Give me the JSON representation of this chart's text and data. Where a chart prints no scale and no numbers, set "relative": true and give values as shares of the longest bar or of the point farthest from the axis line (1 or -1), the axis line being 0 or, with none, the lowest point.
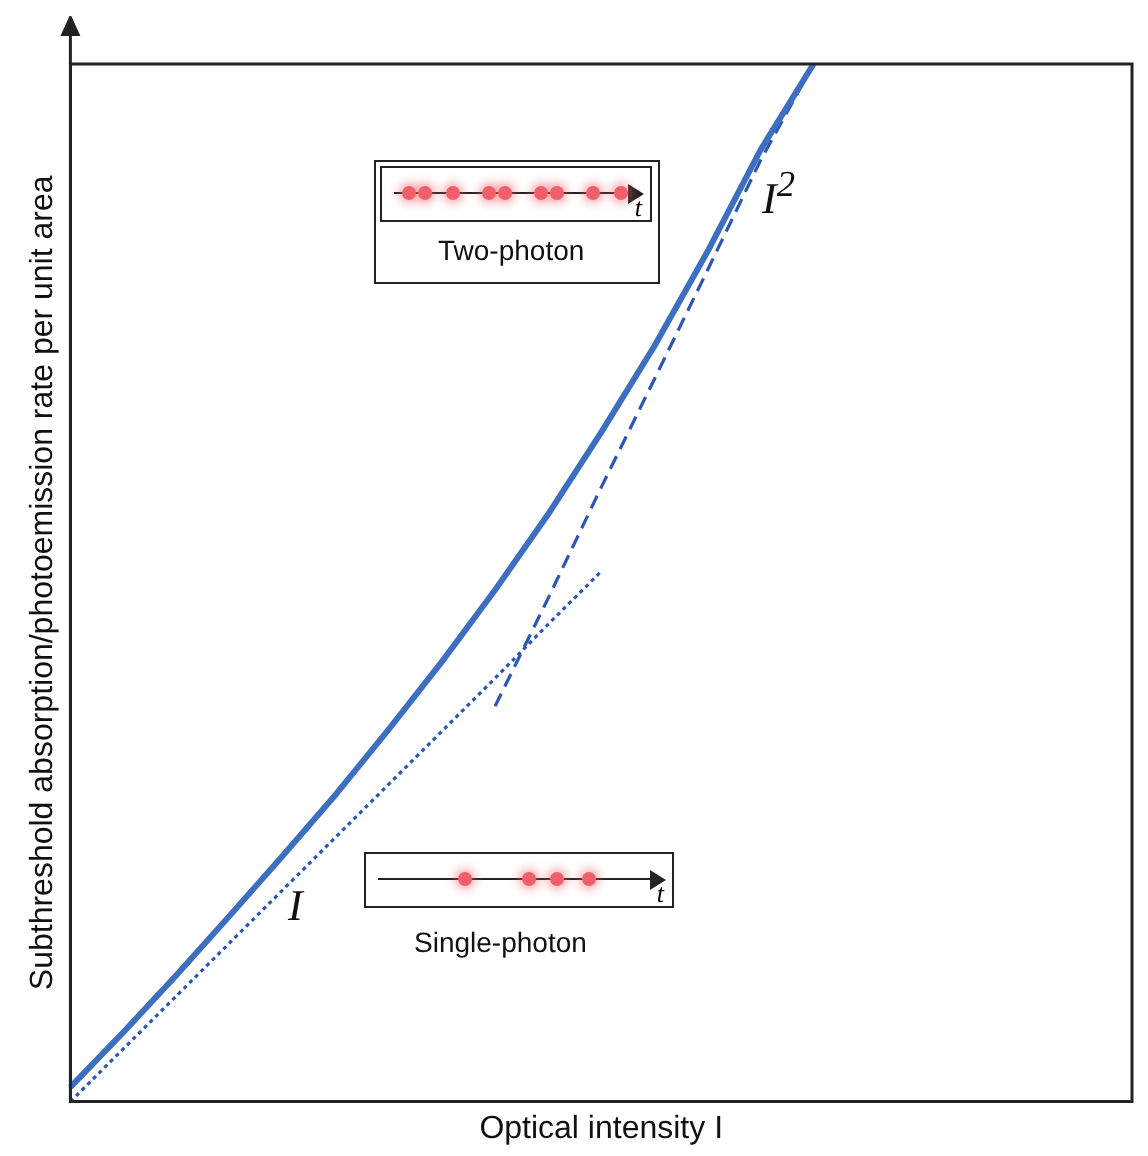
{
  "chart_data": {
    "type": "line",
    "relative": true,
    "xlabel": "Optical intensity I",
    "ylabel": "Subthreshold absorption/photoemission rate per unit area",
    "categories": [
      null,
      null,
      null,
      null,
      null,
      null,
      null,
      null,
      null,
      null,
      null,
      null,
      null,
      null,
      null,
      null,
      null,
      null,
      null,
      null,
      null
    ],
    "series": [
      {
        "color": "#3d6fc0",
        "line_style": "solid",
        "values": [
          0.014,
          0.067,
          0.122,
          0.179,
          0.237,
          0.296,
          0.359,
          0.424,
          0.493,
          0.566,
          0.645,
          0.728,
          0.819,
          0.917,
          1.0,
          null,
          null,
          null,
          null,
          null,
          null
        ]
      },
      {
        "color": "#2d55b5",
        "line_style": "dotted",
        "values": [
          0,
          0.051,
          0.102,
          0.153,
          0.204,
          0.255,
          0.306,
          0.357,
          0.408,
          0.46,
          0.511,
          null,
          null,
          null,
          null,
          null,
          null,
          null,
          null,
          null,
          null
        ]
      },
      {
        "color": "#2d55b5",
        "line_style": "dashed",
        "values": [
          null,
          null,
          null,
          null,
          null,
          null,
          null,
          null,
          0.381,
          0.485,
          0.592,
          0.696,
          0.801,
          0.907,
          1.0,
          null,
          null,
          null,
          null,
          null,
          null
        ]
      }
    ],
    "annotations": [
      "I",
      "I$^{2}$",
      "Two-photon",
      "t",
      "Single-photon",
      "t"
    ],
    "grid": false,
    "legend": false,
    "marker": "none"
  }
}
